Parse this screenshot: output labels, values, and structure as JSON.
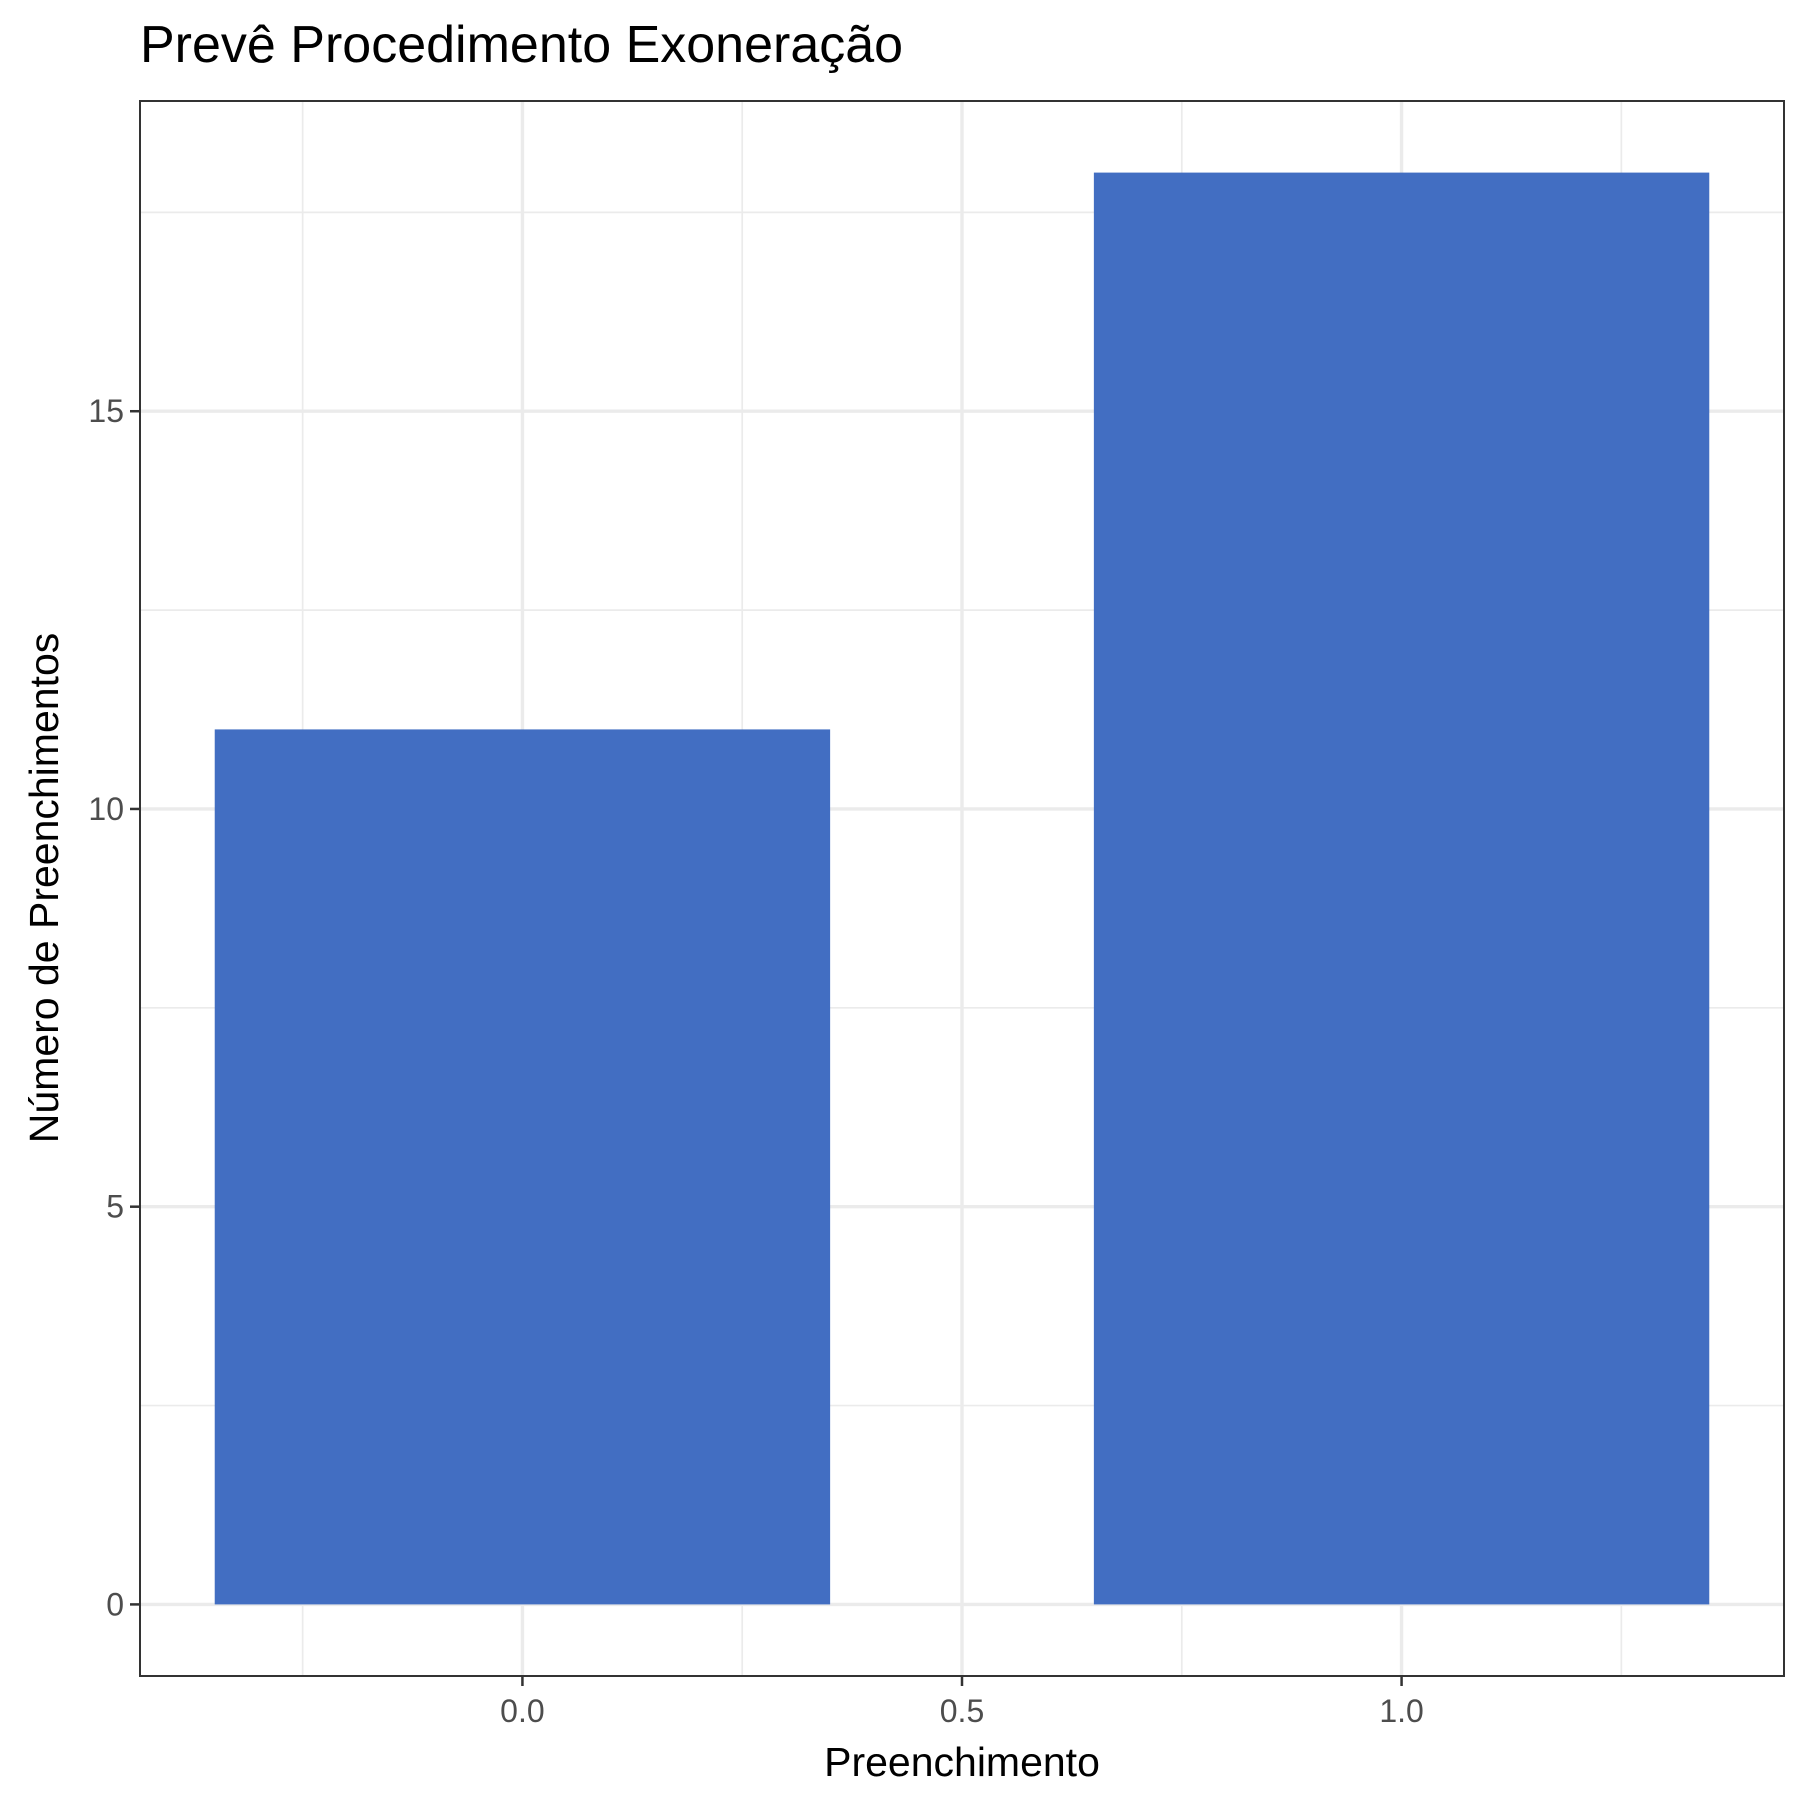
{
  "chart_data": {
    "type": "bar",
    "title": "Prevê Procedimento Exoneração",
    "xlabel": "Preenchimento",
    "ylabel": "Número de Preenchimentos",
    "x": [
      0,
      1
    ],
    "values": [
      11,
      18
    ],
    "bar_width": 0.7,
    "xlim": [
      -0.435,
      1.435
    ],
    "ylim": [
      -0.9,
      18.9
    ],
    "x_ticks": [
      0.0,
      0.5,
      1.0
    ],
    "x_tick_labels": [
      "0.0",
      "0.5",
      "1.0"
    ],
    "y_ticks": [
      0,
      5,
      10,
      15
    ],
    "y_tick_labels": [
      "0",
      "5",
      "10",
      "15"
    ],
    "x_minor": [
      -0.25,
      0.25,
      0.75,
      1.25
    ],
    "y_minor": [
      2.5,
      7.5,
      12.5,
      17.5
    ],
    "bar_color": "#426EC2",
    "grid": true,
    "legend": "none"
  }
}
